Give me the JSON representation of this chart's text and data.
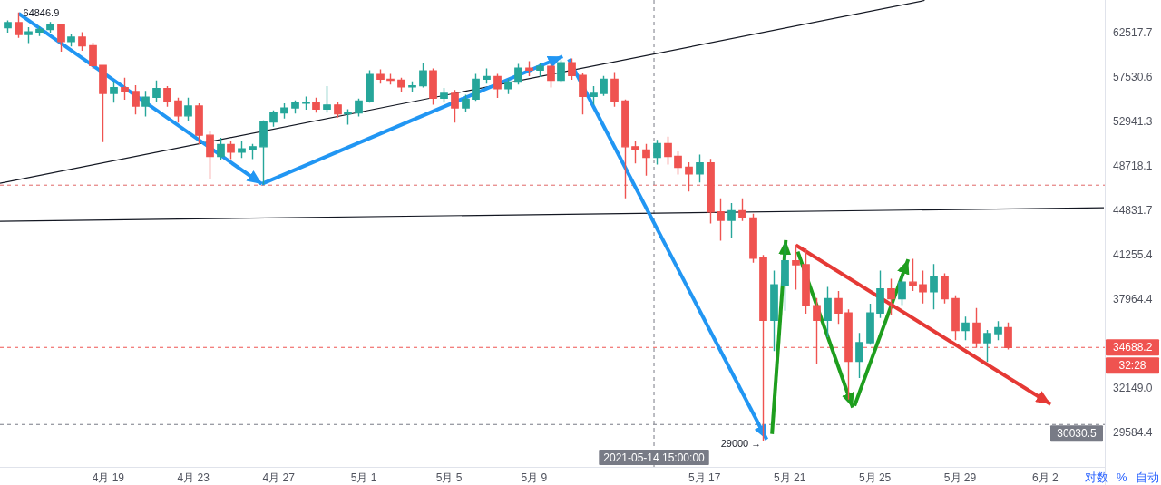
{
  "chart_data": {
    "type": "candlestick",
    "log": "y",
    "xlim": [
      "2021-04-13T22:00",
      "2021-06-04T19:00"
    ],
    "ylim": [
      27740,
      66460
    ],
    "xticks": [
      {
        "value": "2021-04-19",
        "label": "4月 19"
      },
      {
        "value": "2021-04-23",
        "label": "4月 23"
      },
      {
        "value": "2021-04-27",
        "label": "4月 27"
      },
      {
        "value": "2021-05-01",
        "label": "5月 1"
      },
      {
        "value": "2021-05-05",
        "label": "5月 5"
      },
      {
        "value": "2021-05-09",
        "label": "5月 9"
      },
      {
        "value": "2021-05-17",
        "label": "5月 17"
      },
      {
        "value": "2021-05-21",
        "label": "5月 21"
      },
      {
        "value": "2021-05-25",
        "label": "5月 25"
      },
      {
        "value": "2021-05-29",
        "label": "5月 29"
      },
      {
        "value": "2021-06-02",
        "label": "6月 2"
      }
    ],
    "yticks": [
      62517.7,
      57530.6,
      52941.3,
      48718.1,
      44831.7,
      41255.4,
      37964.4,
      {
        "value": 32149.0,
        "label": "32149.0"
      },
      29584.4
    ],
    "x": [
      "2021-04-14T06:00",
      "2021-04-14T18:00",
      "2021-04-15T06:00",
      "2021-04-15T18:00",
      "2021-04-16T06:00",
      "2021-04-16T18:00",
      "2021-04-17T06:00",
      "2021-04-17T18:00",
      "2021-04-18T06:00",
      "2021-04-18T18:00",
      "2021-04-19T06:00",
      "2021-04-19T18:00",
      "2021-04-20T06:00",
      "2021-04-20T18:00",
      "2021-04-21T06:00",
      "2021-04-21T18:00",
      "2021-04-22T06:00",
      "2021-04-22T18:00",
      "2021-04-23T06:00",
      "2021-04-23T18:00",
      "2021-04-24T06:00",
      "2021-04-24T18:00",
      "2021-04-25T06:00",
      "2021-04-25T18:00",
      "2021-04-26T06:00",
      "2021-04-26T18:00",
      "2021-04-27T06:00",
      "2021-04-27T18:00",
      "2021-04-28T06:00",
      "2021-04-28T18:00",
      "2021-04-29T06:00",
      "2021-04-29T18:00",
      "2021-04-30T06:00",
      "2021-04-30T18:00",
      "2021-05-01T06:00",
      "2021-05-01T18:00",
      "2021-05-02T06:00",
      "2021-05-02T18:00",
      "2021-05-03T06:00",
      "2021-05-03T18:00",
      "2021-05-04T06:00",
      "2021-05-04T18:00",
      "2021-05-05T06:00",
      "2021-05-05T18:00",
      "2021-05-06T06:00",
      "2021-05-06T18:00",
      "2021-05-07T06:00",
      "2021-05-07T18:00",
      "2021-05-08T06:00",
      "2021-05-08T18:00",
      "2021-05-09T06:00",
      "2021-05-09T18:00",
      "2021-05-10T06:00",
      "2021-05-10T18:00",
      "2021-05-11T06:00",
      "2021-05-11T18:00",
      "2021-05-12T06:00",
      "2021-05-12T18:00",
      "2021-05-13T06:00",
      "2021-05-13T18:00",
      "2021-05-14T06:00",
      "2021-05-14T18:00",
      "2021-05-15T06:00",
      "2021-05-15T18:00",
      "2021-05-16T06:00",
      "2021-05-16T18:00",
      "2021-05-17T06:00",
      "2021-05-17T18:00",
      "2021-05-18T06:00",
      "2021-05-18T18:00",
      "2021-05-19T06:00",
      "2021-05-19T18:00",
      "2021-05-20T06:00",
      "2021-05-20T18:00",
      "2021-05-21T06:00",
      "2021-05-21T18:00",
      "2021-05-22T06:00",
      "2021-05-22T18:00",
      "2021-05-23T06:00",
      "2021-05-23T18:00",
      "2021-05-24T06:00",
      "2021-05-24T18:00",
      "2021-05-25T06:00",
      "2021-05-25T18:00",
      "2021-05-26T06:00",
      "2021-05-26T18:00",
      "2021-05-27T06:00",
      "2021-05-27T18:00",
      "2021-05-28T06:00",
      "2021-05-28T18:00",
      "2021-05-29T06:00",
      "2021-05-29T18:00",
      "2021-05-30T06:00",
      "2021-05-30T18:00",
      "2021-05-31T06:00"
    ],
    "ohlc": [
      [
        63100,
        63900,
        62600,
        63700
      ],
      [
        63700,
        64846.9,
        62000,
        62300
      ],
      [
        62300,
        63100,
        61400,
        62600
      ],
      [
        62600,
        63200,
        62200,
        62900
      ],
      [
        62900,
        63700,
        62600,
        63400
      ],
      [
        63400,
        63500,
        60400,
        61500
      ],
      [
        61500,
        62300,
        61000,
        62000
      ],
      [
        62000,
        62500,
        60500,
        61000
      ],
      [
        61000,
        61300,
        58500,
        58800
      ],
      [
        58800,
        58800,
        51000,
        55800
      ],
      [
        55800,
        57000,
        54900,
        56400
      ],
      [
        56400,
        57400,
        55200,
        56000
      ],
      [
        56000,
        56600,
        53700,
        54500
      ],
      [
        54500,
        56000,
        53500,
        55400
      ],
      [
        55400,
        57100,
        55000,
        56300
      ],
      [
        56300,
        56500,
        54500,
        55000
      ],
      [
        55000,
        55300,
        52900,
        53500
      ],
      [
        53500,
        55300,
        53100,
        54500
      ],
      [
        54500,
        54700,
        50800,
        51600
      ],
      [
        51600,
        52000,
        47600,
        49600
      ],
      [
        49600,
        51300,
        49300,
        50700
      ],
      [
        50700,
        51000,
        49400,
        50000
      ],
      [
        50000,
        51000,
        49500,
        50300
      ],
      [
        50300,
        50700,
        49400,
        50500
      ],
      [
        50500,
        53000,
        47100,
        52900
      ],
      [
        52900,
        54000,
        52500,
        53800
      ],
      [
        53800,
        54700,
        53300,
        54300
      ],
      [
        54300,
        55000,
        53800,
        54800
      ],
      [
        54800,
        55400,
        54200,
        54900
      ],
      [
        54900,
        55300,
        53900,
        54200
      ],
      [
        54200,
        56500,
        53900,
        54600
      ],
      [
        54600,
        54900,
        53400,
        53700
      ],
      [
        53700,
        54100,
        52700,
        53800
      ],
      [
        53800,
        55200,
        53500,
        55000
      ],
      [
        55000,
        58200,
        54900,
        57800
      ],
      [
        57800,
        58300,
        56900,
        57300
      ],
      [
        57300,
        57800,
        56800,
        57200
      ],
      [
        57200,
        57400,
        56000,
        56500
      ],
      [
        56500,
        57000,
        56000,
        56600
      ],
      [
        56600,
        59000,
        56500,
        58200
      ],
      [
        58200,
        58400,
        54700,
        55300
      ],
      [
        55300,
        56300,
        54900,
        55800
      ],
      [
        55800,
        56100,
        52900,
        54300
      ],
      [
        54300,
        55600,
        54000,
        55200
      ],
      [
        55200,
        57800,
        55100,
        57300
      ],
      [
        57300,
        58400,
        56900,
        57600
      ],
      [
        57600,
        57800,
        55400,
        56300
      ],
      [
        56300,
        57300,
        55800,
        57000
      ],
      [
        57000,
        58900,
        56800,
        58500
      ],
      [
        58500,
        59200,
        57700,
        58300
      ],
      [
        58300,
        59000,
        57600,
        58700
      ],
      [
        58700,
        58900,
        56500,
        57200
      ],
      [
        57200,
        59300,
        57000,
        59100
      ],
      [
        59100,
        59500,
        57300,
        57700
      ],
      [
        57700,
        57900,
        53700,
        55500
      ],
      [
        55500,
        56500,
        54700,
        55800
      ],
      [
        55800,
        57600,
        55600,
        57300
      ],
      [
        57300,
        58000,
        54500,
        55000
      ],
      [
        55000,
        55100,
        45900,
        50500
      ],
      [
        50500,
        51000,
        49000,
        50200
      ],
      [
        50200,
        50700,
        47900,
        49500
      ],
      [
        49500,
        51100,
        48900,
        50800
      ],
      [
        50800,
        51400,
        48900,
        49600
      ],
      [
        49600,
        50000,
        48000,
        48600
      ],
      [
        48600,
        49000,
        46500,
        48000
      ],
      [
        48000,
        49700,
        47300,
        49000
      ],
      [
        49000,
        49300,
        43800,
        44700
      ],
      [
        44700,
        45800,
        42400,
        44000
      ],
      [
        44000,
        45400,
        42600,
        44800
      ],
      [
        44800,
        45800,
        44000,
        44200
      ],
      [
        44200,
        44500,
        40700,
        41000
      ],
      [
        41000,
        41200,
        29150,
        36500
      ],
      [
        36500,
        40000,
        34500,
        39000
      ],
      [
        39000,
        42100,
        37200,
        40800
      ],
      [
        40800,
        42000,
        38700,
        40500
      ],
      [
        40500,
        41700,
        37000,
        37500
      ],
      [
        37500,
        38000,
        33700,
        36500
      ],
      [
        36500,
        38800,
        35400,
        38000
      ],
      [
        38000,
        38500,
        36300,
        37000
      ],
      [
        37000,
        37200,
        31500,
        33800
      ],
      [
        33800,
        35600,
        32800,
        35000
      ],
      [
        35000,
        37600,
        34900,
        37000
      ],
      [
        37000,
        40000,
        36700,
        38700
      ],
      [
        38700,
        39400,
        36900,
        38000
      ],
      [
        38000,
        39600,
        37600,
        39200
      ],
      [
        39200,
        40900,
        38600,
        39000
      ],
      [
        39000,
        40000,
        37700,
        38500
      ],
      [
        38500,
        40500,
        37300,
        39600
      ],
      [
        39600,
        39800,
        37700,
        38000
      ],
      [
        38000,
        38200,
        35200,
        35800
      ],
      [
        35800,
        36700,
        35200,
        36300
      ],
      [
        36300,
        37300,
        34700,
        35000
      ],
      [
        35000,
        35800,
        33800,
        35600
      ],
      [
        35600,
        36400,
        35200,
        36000
      ],
      [
        36000,
        36300,
        34600,
        34688.2
      ]
    ],
    "colors": [
      "#26a69a",
      "#ef5350",
      "#26a69a",
      "#26a69a",
      "#26a69a",
      "#ef5350",
      "#26a69a",
      "#ef5350",
      "#ef5350",
      "#ef5350",
      "#26a69a",
      "#ef5350",
      "#ef5350",
      "#26a69a",
      "#26a69a",
      "#ef5350",
      "#ef5350",
      "#26a69a",
      "#ef5350",
      "#ef5350",
      "#26a69a",
      "#ef5350",
      "#26a69a",
      "#26a69a",
      "#26a69a",
      "#26a69a",
      "#26a69a",
      "#26a69a",
      "#26a69a",
      "#ef5350",
      "#26a69a",
      "#ef5350",
      "#26a69a",
      "#26a69a",
      "#26a69a",
      "#ef5350",
      "#ef5350",
      "#ef5350",
      "#26a69a",
      "#26a69a",
      "#ef5350",
      "#26a69a",
      "#ef5350",
      "#26a69a",
      "#26a69a",
      "#26a69a",
      "#ef5350",
      "#26a69a",
      "#26a69a",
      "#ef5350",
      "#26a69a",
      "#ef5350",
      "#26a69a",
      "#ef5350",
      "#ef5350",
      "#26a69a",
      "#26a69a",
      "#ef5350",
      "#ef5350",
      "#ef5350",
      "#ef5350",
      "#26a69a",
      "#ef5350",
      "#ef5350",
      "#ef5350",
      "#26a69a",
      "#ef5350",
      "#ef5350",
      "#26a69a",
      "#ef5350",
      "#ef5350",
      "#ef5350",
      "#26a69a",
      "#26a69a",
      "#ef5350",
      "#ef5350",
      "#ef5350",
      "#26a69a",
      "#ef5350",
      "#ef5350",
      "#26a69a",
      "#26a69a",
      "#26a69a",
      "#ef5350",
      "#26a69a",
      "#ef5350",
      "#ef5350",
      "#26a69a",
      "#ef5350",
      "#ef5350",
      "#26a69a",
      "#ef5350",
      "#26a69a",
      "#26a69a",
      "#ef5350"
    ],
    "series": [
      {
        "type": "line",
        "color": "#131722",
        "x": [
          "2021-04-13T22:00",
          "2021-05-27T08:00"
        ],
        "values": [
          47170,
          66400
        ]
      },
      {
        "type": "line",
        "color": "#131722",
        "x": [
          "2021-04-13T22:00",
          "2021-06-04T18:00"
        ],
        "values": [
          43930,
          45060
        ]
      },
      {
        "type": "line",
        "color": "#2196f3",
        "x": [
          "2021-04-14T19:00",
          "2021-04-26T05:00"
        ],
        "values": [
          64800,
          47100
        ]
      },
      {
        "type": "line",
        "color": "#2196f3",
        "x": [
          "2021-04-26T05:00",
          "2021-05-10T08:00"
        ],
        "values": [
          47100,
          59800
        ]
      },
      {
        "type": "line",
        "color": "#2196f3",
        "x": [
          "2021-05-10T15:00",
          "2021-05-19T22:00"
        ],
        "values": [
          59500,
          29200
        ]
      },
      {
        "type": "line",
        "color": "#1e9e1e",
        "x": [
          "2021-05-20T04:00",
          "2021-05-20T19:30"
        ],
        "values": [
          29500,
          42400
        ]
      },
      {
        "type": "line",
        "color": "#1e9e1e",
        "x": [
          "2021-05-21T09:00",
          "2021-05-23T23:00"
        ],
        "values": [
          41500,
          31000
        ]
      },
      {
        "type": "line",
        "color": "#1e9e1e",
        "x": [
          "2021-05-24T01:00",
          "2021-05-26T13:30"
        ],
        "values": [
          31100,
          40900
        ]
      },
      {
        "type": "line",
        "color": "#e53935",
        "x": [
          "2021-05-21T07:00",
          "2021-06-02T06:00"
        ],
        "values": [
          42000,
          31200
        ]
      }
    ],
    "ref_lines": [
      {
        "axis": "y",
        "value": 47000,
        "color": "#e06666",
        "line_style": "dashed"
      },
      {
        "axis": "y",
        "value": 34688.2,
        "label": "34688.2",
        "color": "#ef5350",
        "line_style": "dashed"
      },
      {
        "axis": "y",
        "value": 30030.5,
        "label": "30030.5",
        "color": "#787b86",
        "line_style": "dashed"
      },
      {
        "axis": "x",
        "value": "2021-05-14T15:00",
        "label": "2021-05-14 15:00:00",
        "color": "#787b86",
        "line_style": "dashed"
      }
    ],
    "annotations": [
      {
        "text": "64846.9",
        "x": "2021-04-14T20:00",
        "y": 64846.9
      },
      {
        "text": "29000 →",
        "x": "2021-05-19T20:00",
        "y": 29000
      },
      "32:28",
      "对数",
      "%",
      "自动"
    ]
  }
}
